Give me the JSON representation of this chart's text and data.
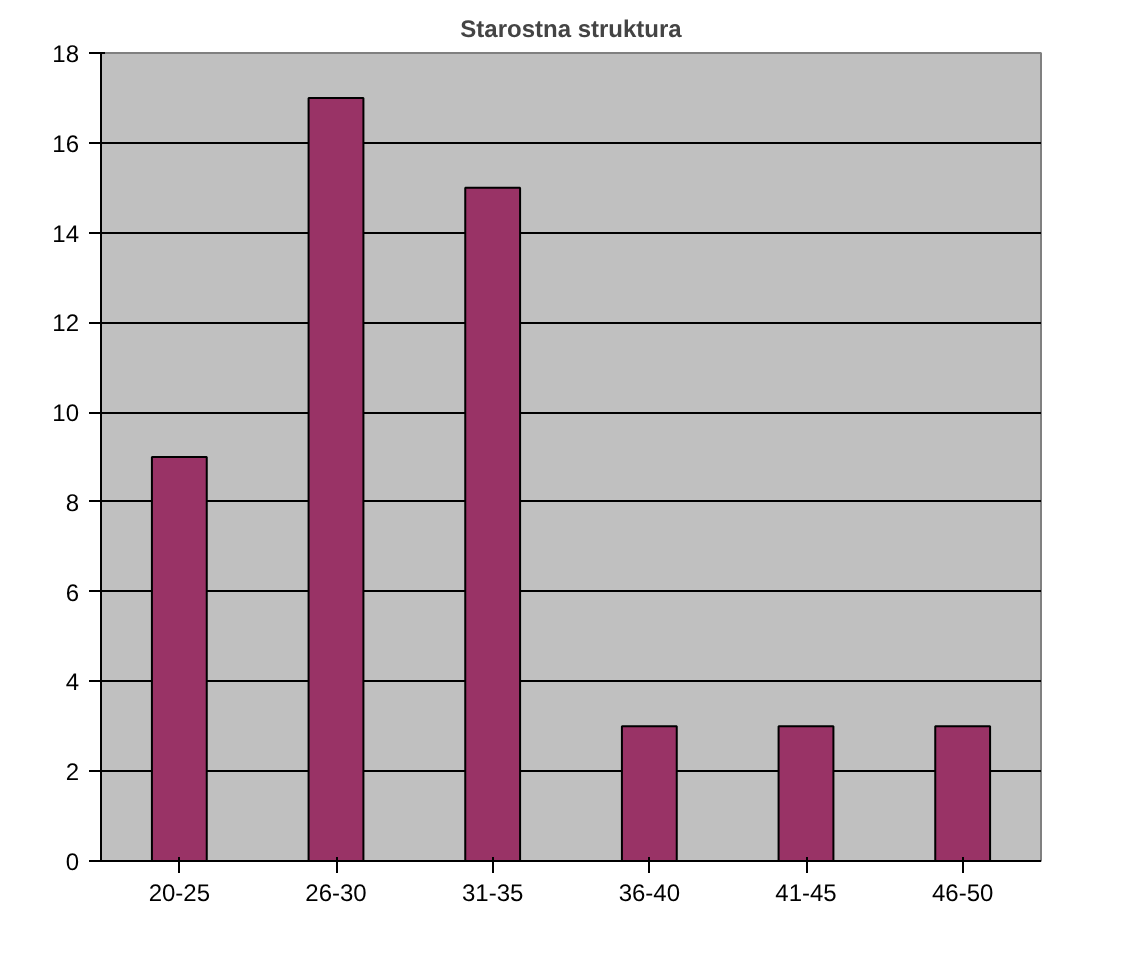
{
  "chart_data": {
    "type": "bar",
    "title": "Starostna struktura",
    "categories": [
      "20-25",
      "26-30",
      "31-35",
      "36-40",
      "41-45",
      "46-50"
    ],
    "values": [
      9,
      17,
      15,
      3,
      3,
      3
    ],
    "color": "#993366",
    "ylim": [
      0,
      18
    ],
    "yticks": [
      0,
      2,
      4,
      6,
      8,
      10,
      12,
      14,
      16,
      18
    ],
    "grid": "y"
  }
}
